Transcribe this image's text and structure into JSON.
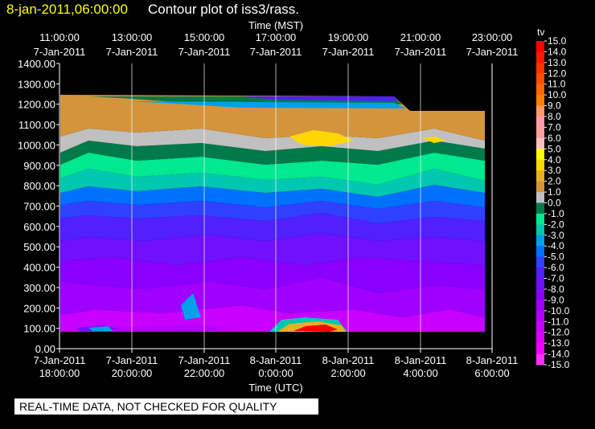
{
  "header": {
    "timestamp": "8-jan-2011,06:00:00",
    "title": "Contour plot of iss3/rass."
  },
  "notice": "REAL-TIME DATA, NOT CHECKED FOR QUALITY",
  "chart_data": {
    "type": "heatmap",
    "title": "Contour plot of iss3/rass.",
    "top_axis_label": "Time (MST)",
    "xlabel": "Time (UTC)",
    "ylabel": "",
    "ylim": [
      0,
      1400
    ],
    "y_ticks": [
      "0.00",
      "100.00",
      "200.00",
      "300.00",
      "400.00",
      "500.00",
      "600.00",
      "700.00",
      "800.00",
      "900.00",
      "1000.00",
      "1100.00",
      "1200.00",
      "1300.00",
      "1400.00"
    ],
    "x_ticks_bottom": [
      {
        "date": "7-Jan-2011",
        "time": "18:00:00"
      },
      {
        "date": "7-Jan-2011",
        "time": "20:00:00"
      },
      {
        "date": "7-Jan-2011",
        "time": "22:00:00"
      },
      {
        "date": "8-Jan-2011",
        "time": "0:00:00"
      },
      {
        "date": "8-Jan-2011",
        "time": "2:00:00"
      },
      {
        "date": "8-Jan-2011",
        "time": "4:00:00"
      },
      {
        "date": "8-Jan-2011",
        "time": "6:00:00"
      }
    ],
    "x_ticks_top": [
      {
        "time": "11:00:00",
        "date": "7-Jan-2011"
      },
      {
        "time": "13:00:00",
        "date": "7-Jan-2011"
      },
      {
        "time": "15:00:00",
        "date": "7-Jan-2011"
      },
      {
        "time": "17:00:00",
        "date": "7-Jan-2011"
      },
      {
        "time": "19:00:00",
        "date": "7-Jan-2011"
      },
      {
        "time": "21:00:00",
        "date": "7-Jan-2011"
      },
      {
        "time": "23:00:00",
        "date": "7-Jan-2011"
      }
    ],
    "grid": true,
    "colorbar": {
      "label": "tv",
      "levels": [
        "15.0",
        "14.0",
        "13.0",
        "12.0",
        "11.0",
        "10.0",
        "9.0",
        "8.0",
        "7.0",
        "6.0",
        "5.0",
        "4.0",
        "3.0",
        "2.0",
        "1.0",
        "0.0",
        "-1.0",
        "-2.0",
        "-3.0",
        "-4.0",
        "-5.0",
        "-6.0",
        "-7.0",
        "-8.0",
        "-9.0",
        "-10.0",
        "-11.0",
        "-12.0",
        "-13.0",
        "-14.0",
        "-15.0"
      ],
      "colors": [
        "#ff0000",
        "#ff1a00",
        "#ff3300",
        "#ff4d00",
        "#ff6600",
        "#ff8000",
        "#ff9966",
        "#ff99aa",
        "#ffa0a0",
        "#ffc0c0",
        "#ffff00",
        "#ffd700",
        "#e8b020",
        "#d4943c",
        "#c0c0c0",
        "#007a4a",
        "#00e890",
        "#00c8b0",
        "#00a0e8",
        "#0070ff",
        "#3040ff",
        "#5020ff",
        "#7010ff",
        "#8a00ff",
        "#a000ff",
        "#b400ff",
        "#c800ff",
        "#dc00ff",
        "#f000ff",
        "#ff30ff"
      ]
    }
  }
}
